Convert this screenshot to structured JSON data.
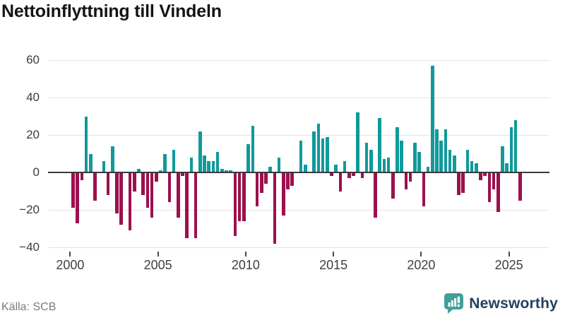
{
  "title": "Nettoinflyttning till Vindeln",
  "footer": {
    "source": "Källa: SCB"
  },
  "brand": {
    "name": "Newsworthy",
    "icon": "newsworthy-speech-bubble-bar-chart-icon",
    "icon_color": "#3fa099",
    "text_color": "#24405e"
  },
  "chart_data": {
    "type": "bar",
    "title": "Nettoinflyttning till Vindeln",
    "frequency": "quarterly",
    "start_period": "2000 Q1",
    "end_period": "2025 Q3",
    "values": [
      -19,
      -27,
      -4,
      30,
      10,
      -15,
      0,
      6,
      -12,
      14,
      -22,
      -28,
      0,
      -31,
      -10,
      2,
      -12,
      -19,
      -24,
      -5,
      1,
      10,
      -16,
      12,
      -24,
      -2,
      -35,
      8,
      -35,
      22,
      9,
      6,
      6,
      11,
      2,
      1,
      1,
      -34,
      -26,
      -26,
      15,
      25,
      -18,
      -11,
      -6,
      3,
      -38,
      8,
      -23,
      -9,
      -7,
      0,
      17,
      4,
      0,
      22,
      26,
      18,
      19,
      -2,
      4,
      -10,
      6,
      -3,
      -2,
      32,
      -3,
      16,
      12,
      -24,
      29,
      7,
      8,
      -14,
      24,
      17,
      -9,
      -5,
      16,
      11,
      -18,
      3,
      57,
      23,
      17,
      23,
      12,
      9,
      -12,
      -11,
      12,
      6,
      5,
      -4,
      -2,
      -16,
      -9,
      -21,
      14,
      5,
      24,
      28,
      -15
    ],
    "x_tick_labels": [
      "2000",
      "2005",
      "2010",
      "2015",
      "2020",
      "2025"
    ],
    "y_ticks": [
      60,
      40,
      20,
      0,
      -20,
      -40
    ],
    "y_tick_labels": [
      "60",
      "40",
      "20",
      "0",
      "−20",
      "−40"
    ],
    "ylim": [
      -45,
      65
    ],
    "grid": "horizontal",
    "legend": "none",
    "colors": {
      "positive": "#11999b",
      "negative": "#9c104f"
    }
  }
}
